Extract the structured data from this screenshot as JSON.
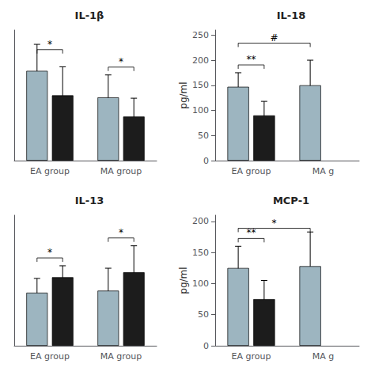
{
  "chart_data": [
    {
      "type": "bar",
      "title": "IL-1β",
      "categories": [
        "EA group",
        "MA group"
      ],
      "series": [
        {
          "color": "#9db5c0",
          "values": [
            220,
            155
          ],
          "errors": [
            65,
            55
          ]
        },
        {
          "color": "#1c1c1c",
          "values": [
            160,
            108
          ],
          "errors": [
            70,
            45
          ]
        }
      ],
      "ylim": [
        0,
        320
      ],
      "yticks": [],
      "tick_labels": "x",
      "grid": false,
      "annotations": [
        {
          "text": "*",
          "from": {
            "series": 0,
            "category": 0
          },
          "to": {
            "series": 1,
            "category": 0
          }
        },
        {
          "text": "*",
          "from": {
            "series": 0,
            "category": 1
          },
          "to": {
            "series": 1,
            "category": 1
          }
        }
      ]
    },
    {
      "type": "bar",
      "title": "IL-18",
      "ylabel": "pg/ml",
      "categories": [
        "EA group",
        "MA g"
      ],
      "series": [
        {
          "color": "#9db5c0",
          "values": [
            147,
            150
          ],
          "errors": [
            28,
            50
          ]
        },
        {
          "color": "#1c1c1c",
          "values": [
            90,
            null
          ],
          "errors": [
            28,
            null
          ]
        }
      ],
      "ylim": [
        0,
        260
      ],
      "yticks": [
        0,
        50,
        100,
        150,
        200,
        250
      ],
      "grid": false,
      "annotations": [
        {
          "text": "**",
          "from": {
            "series": 0,
            "category": 0
          },
          "to": {
            "series": 1,
            "category": 0
          }
        },
        {
          "text": "#",
          "from": {
            "series": 0,
            "category": 0
          },
          "to": {
            "series": 0,
            "category": 1
          }
        }
      ]
    },
    {
      "type": "bar",
      "title": "IL-13",
      "categories": [
        "EA group",
        "MA group"
      ],
      "series": [
        {
          "color": "#9db5c0",
          "values": [
            130,
            135
          ],
          "errors": [
            35,
            55
          ]
        },
        {
          "color": "#1c1c1c",
          "values": [
            168,
            180
          ],
          "errors": [
            28,
            65
          ]
        }
      ],
      "ylim": [
        0,
        320
      ],
      "yticks": [],
      "tick_labels": "x",
      "grid": false,
      "annotations": [
        {
          "text": "*",
          "from": {
            "series": 0,
            "category": 0
          },
          "to": {
            "series": 1,
            "category": 0
          }
        },
        {
          "text": "*",
          "from": {
            "series": 0,
            "category": 1
          },
          "to": {
            "series": 1,
            "category": 1
          }
        }
      ]
    },
    {
      "type": "bar",
      "title": "MCP-1",
      "ylabel": "pg/ml",
      "categories": [
        "EA group",
        "MA g"
      ],
      "series": [
        {
          "color": "#9db5c0",
          "values": [
            125,
            128
          ],
          "errors": [
            35,
            55
          ]
        },
        {
          "color": "#1c1c1c",
          "values": [
            75,
            null
          ],
          "errors": [
            30,
            null
          ]
        }
      ],
      "ylim": [
        0,
        210
      ],
      "yticks": [
        0,
        50,
        100,
        150,
        200
      ],
      "grid": false,
      "annotations": [
        {
          "text": "**",
          "from": {
            "series": 0,
            "category": 0
          },
          "to": {
            "series": 1,
            "category": 0
          }
        },
        {
          "text": "*",
          "from": {
            "series": 0,
            "category": 0
          },
          "to": {
            "series": 0,
            "category": 1
          }
        }
      ]
    }
  ]
}
